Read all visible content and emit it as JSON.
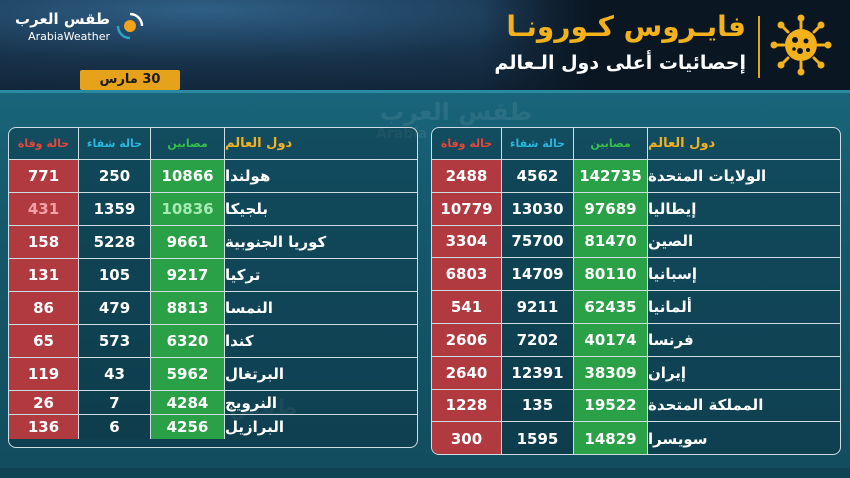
{
  "logo": {
    "ar": "طقس العرب",
    "en": "ArabiaWeather"
  },
  "date": "30 مارس",
  "title": "فايـروس كـورونـا",
  "subtitle": "إحصائيات أعلى دول الـعالم",
  "watermark": {
    "ar": "طقس العرب",
    "en": "Arabia"
  },
  "headers": {
    "country": "دول العالم",
    "cases": "مصابين",
    "recovered": "حالة شفاء",
    "deaths": "حالة وفاة"
  },
  "colors": {
    "deaths": "#b13a41",
    "cases": "#2aa146",
    "accent": "#f3b21c"
  },
  "right_table": [
    {
      "country": "الولايات المتحدة",
      "cases": "142735",
      "recovered": "4562",
      "deaths": "2488"
    },
    {
      "country": "إيطاليا",
      "cases": "97689",
      "recovered": "13030",
      "deaths": "10779"
    },
    {
      "country": "الصين",
      "cases": "81470",
      "recovered": "75700",
      "deaths": "3304"
    },
    {
      "country": "إسبانيا",
      "cases": "80110",
      "recovered": "14709",
      "deaths": "6803"
    },
    {
      "country": "ألمانيا",
      "cases": "62435",
      "recovered": "9211",
      "deaths": "541"
    },
    {
      "country": "فرنسا",
      "cases": "40174",
      "recovered": "7202",
      "deaths": "2606"
    },
    {
      "country": "إيران",
      "cases": "38309",
      "recovered": "12391",
      "deaths": "2640"
    },
    {
      "country": "المملكة المتحدة",
      "cases": "19522",
      "recovered": "135",
      "deaths": "1228"
    },
    {
      "country": "سويسرا",
      "cases": "14829",
      "recovered": "1595",
      "deaths": "300"
    }
  ],
  "left_table": [
    {
      "country": "هولندا",
      "cases": "10866",
      "recovered": "250",
      "deaths": "771"
    },
    {
      "country": "بلجيكا",
      "cases": "10836",
      "recovered": "1359",
      "deaths": "431"
    },
    {
      "country": "كوريا الجنوبية",
      "cases": "9661",
      "recovered": "5228",
      "deaths": "158"
    },
    {
      "country": "تركيا",
      "cases": "9217",
      "recovered": "105",
      "deaths": "131"
    },
    {
      "country": "النمسا",
      "cases": "8813",
      "recovered": "479",
      "deaths": "86"
    },
    {
      "country": "كندا",
      "cases": "6320",
      "recovered": "573",
      "deaths": "65"
    },
    {
      "country": "البرتغال",
      "cases": "5962",
      "recovered": "43",
      "deaths": "119"
    },
    {
      "country": "النرويج",
      "cases": "4284",
      "recovered": "7",
      "deaths": "26"
    },
    {
      "country": "البرازيل",
      "cases": "4256",
      "recovered": "6",
      "deaths": "136"
    }
  ]
}
